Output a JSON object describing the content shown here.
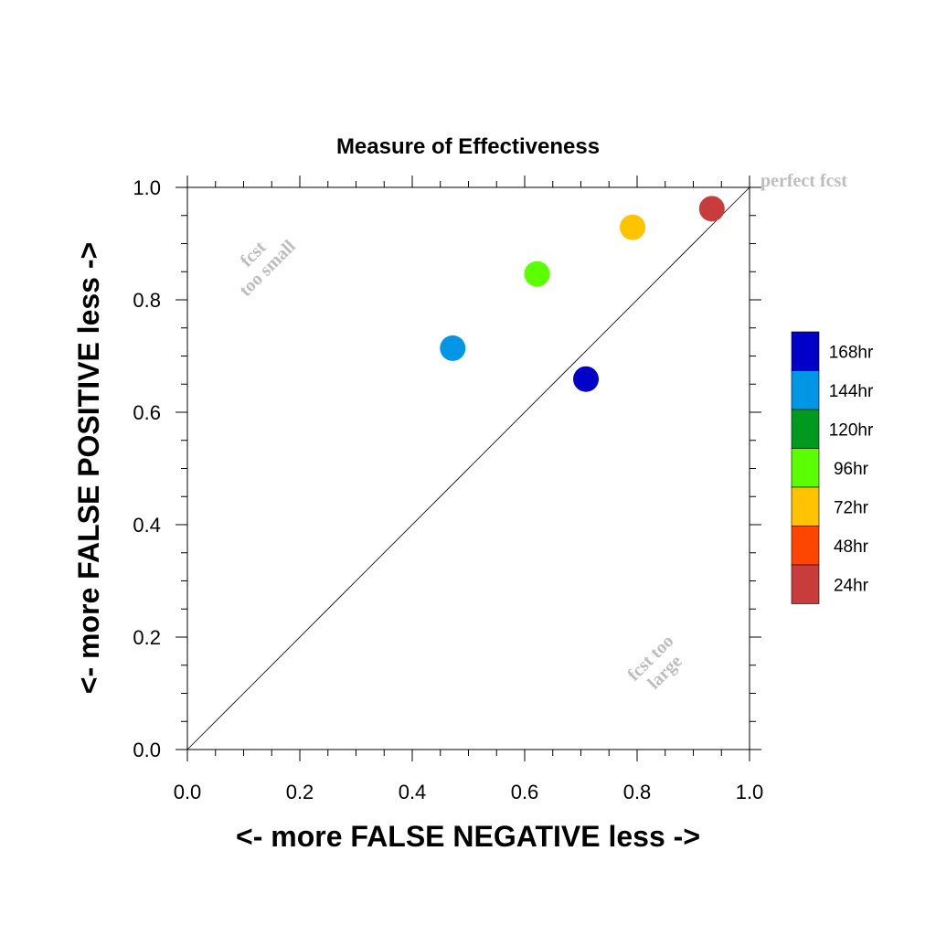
{
  "chart_data": {
    "type": "scatter",
    "title": "Measure of Effectiveness",
    "xlabel": "<- more   FALSE NEGATIVE   less ->",
    "ylabel": "<- more   FALSE POSITIVE   less ->",
    "xlim": [
      0,
      1
    ],
    "ylim": [
      0,
      1
    ],
    "x_ticks": [
      "0.0",
      "0.2",
      "0.4",
      "0.6",
      "0.8",
      "1.0"
    ],
    "y_ticks": [
      "0.0",
      "0.2",
      "0.4",
      "0.6",
      "0.8",
      "1.0"
    ],
    "grid": false,
    "reference_line": "diagonal y = x",
    "annotations": {
      "perfect": "perfect fcst",
      "too_small_line1": "fcst",
      "too_small_line2": "too small",
      "too_large_line1": "fcst too",
      "too_large_line2": "large"
    },
    "legend_position": "right",
    "legend": [
      {
        "label": "168hr",
        "color": "#0000c8"
      },
      {
        "label": "144hr",
        "color": "#0096e6"
      },
      {
        "label": "120hr",
        "color": "#009b1e"
      },
      {
        "label": "96hr",
        "color": "#5aff00"
      },
      {
        "label": "72hr",
        "color": "#ffc300"
      },
      {
        "label": "48hr",
        "color": "#ff4600"
      },
      {
        "label": "24hr",
        "color": "#c83c3c"
      }
    ],
    "points": [
      {
        "label": "24hr",
        "x": 0.933,
        "y": 0.962,
        "color": "#c83c3c"
      },
      {
        "label": "72hr",
        "x": 0.792,
        "y": 0.929,
        "color": "#ffc300"
      },
      {
        "label": "96hr",
        "x": 0.622,
        "y": 0.846,
        "color": "#5aff00"
      },
      {
        "label": "144hr",
        "x": 0.472,
        "y": 0.714,
        "color": "#0096e6"
      },
      {
        "label": "168hr",
        "x": 0.709,
        "y": 0.659,
        "color": "#0000c8"
      }
    ]
  }
}
